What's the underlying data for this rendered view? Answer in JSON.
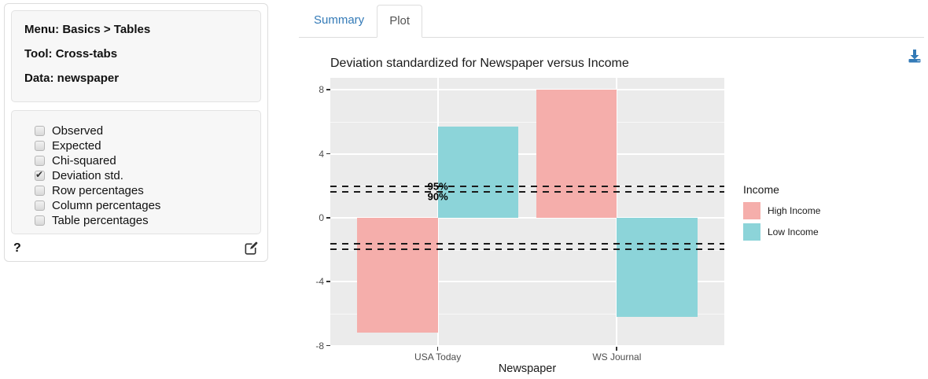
{
  "sidebar": {
    "info": {
      "menu": "Menu: Basics > Tables",
      "tool": "Tool: Cross-tabs",
      "data": "Data: newspaper"
    },
    "options": [
      {
        "label": "Observed",
        "checked": false
      },
      {
        "label": "Expected",
        "checked": false
      },
      {
        "label": "Chi-squared",
        "checked": false
      },
      {
        "label": "Deviation std.",
        "checked": true
      },
      {
        "label": "Row percentages",
        "checked": false
      },
      {
        "label": "Column percentages",
        "checked": false
      },
      {
        "label": "Table percentages",
        "checked": false
      }
    ],
    "help_label": "?",
    "icons": {
      "edit": "pencil-square-icon"
    }
  },
  "tabs": {
    "summary": "Summary",
    "plot": "Plot"
  },
  "toolbar": {
    "download_icon": "download-icon"
  },
  "chart_data": {
    "type": "bar",
    "title": "Deviation standardized for Newspaper versus Income",
    "xlabel": "Newspaper",
    "ylabel": "",
    "categories": [
      "USA Today",
      "WS Journal"
    ],
    "series": [
      {
        "name": "High Income",
        "color": "#F5AEAB",
        "values": [
          -7.2,
          8.0
        ]
      },
      {
        "name": "Low Income",
        "color": "#8CD4D9",
        "values": [
          5.7,
          -6.2
        ]
      }
    ],
    "legend_title": "Income",
    "legend_position": "right",
    "yticks": [
      -8,
      -4,
      0,
      4,
      8
    ],
    "yticks_minor": [
      -6,
      -2,
      2,
      6
    ],
    "ylim": [
      -8.07,
      8.76
    ],
    "reference_lines": [
      {
        "value": 1.96,
        "label": "95%"
      },
      {
        "value": 1.64,
        "label": "90%"
      },
      {
        "value": -1.64,
        "label": ""
      },
      {
        "value": -1.96,
        "label": ""
      }
    ],
    "grid": true,
    "panel_bg": "#EBEBEB"
  }
}
